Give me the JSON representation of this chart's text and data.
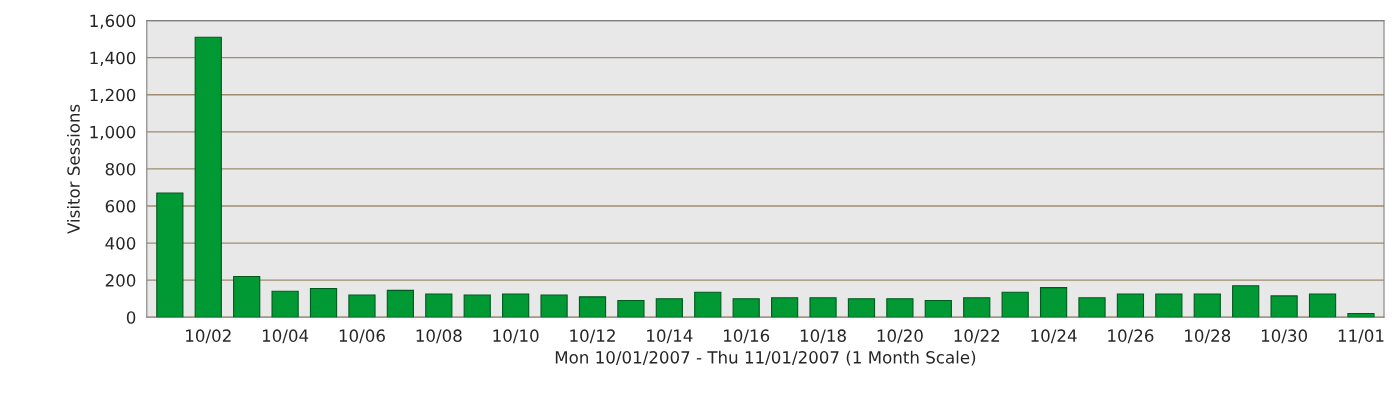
{
  "chart_data": {
    "type": "bar",
    "categories": [
      null,
      "10/02",
      null,
      "10/04",
      null,
      "10/06",
      null,
      "10/08",
      null,
      "10/10",
      null,
      "10/12",
      null,
      "10/14",
      null,
      "10/16",
      null,
      "10/18",
      null,
      "10/20",
      null,
      "10/22",
      null,
      "10/24",
      null,
      "10/26",
      null,
      "10/28",
      null,
      "10/30",
      null,
      "11/01"
    ],
    "series": [
      {
        "color": "#009933",
        "values": [
          670,
          1510,
          220,
          140,
          155,
          120,
          145,
          125,
          120,
          125,
          120,
          110,
          90,
          100,
          135,
          100,
          105,
          105,
          100,
          100,
          90,
          105,
          135,
          160,
          105,
          125,
          125,
          125,
          170,
          115,
          125,
          20
        ]
      }
    ],
    "xlabel": "Mon 10/01/2007 - Thu 11/01/2007 (1 Month Scale)",
    "ylabel": "Visitor Sessions",
    "ylim": [
      0,
      1600
    ],
    "yticks": [
      0,
      200,
      400,
      600,
      800,
      {
        "value": 1000,
        "label": "1,000"
      },
      {
        "value": 1200,
        "label": "1,200"
      },
      {
        "value": 1400,
        "label": "1,400"
      },
      {
        "value": 1600,
        "label": "1,600"
      }
    ],
    "grid": "y"
  }
}
